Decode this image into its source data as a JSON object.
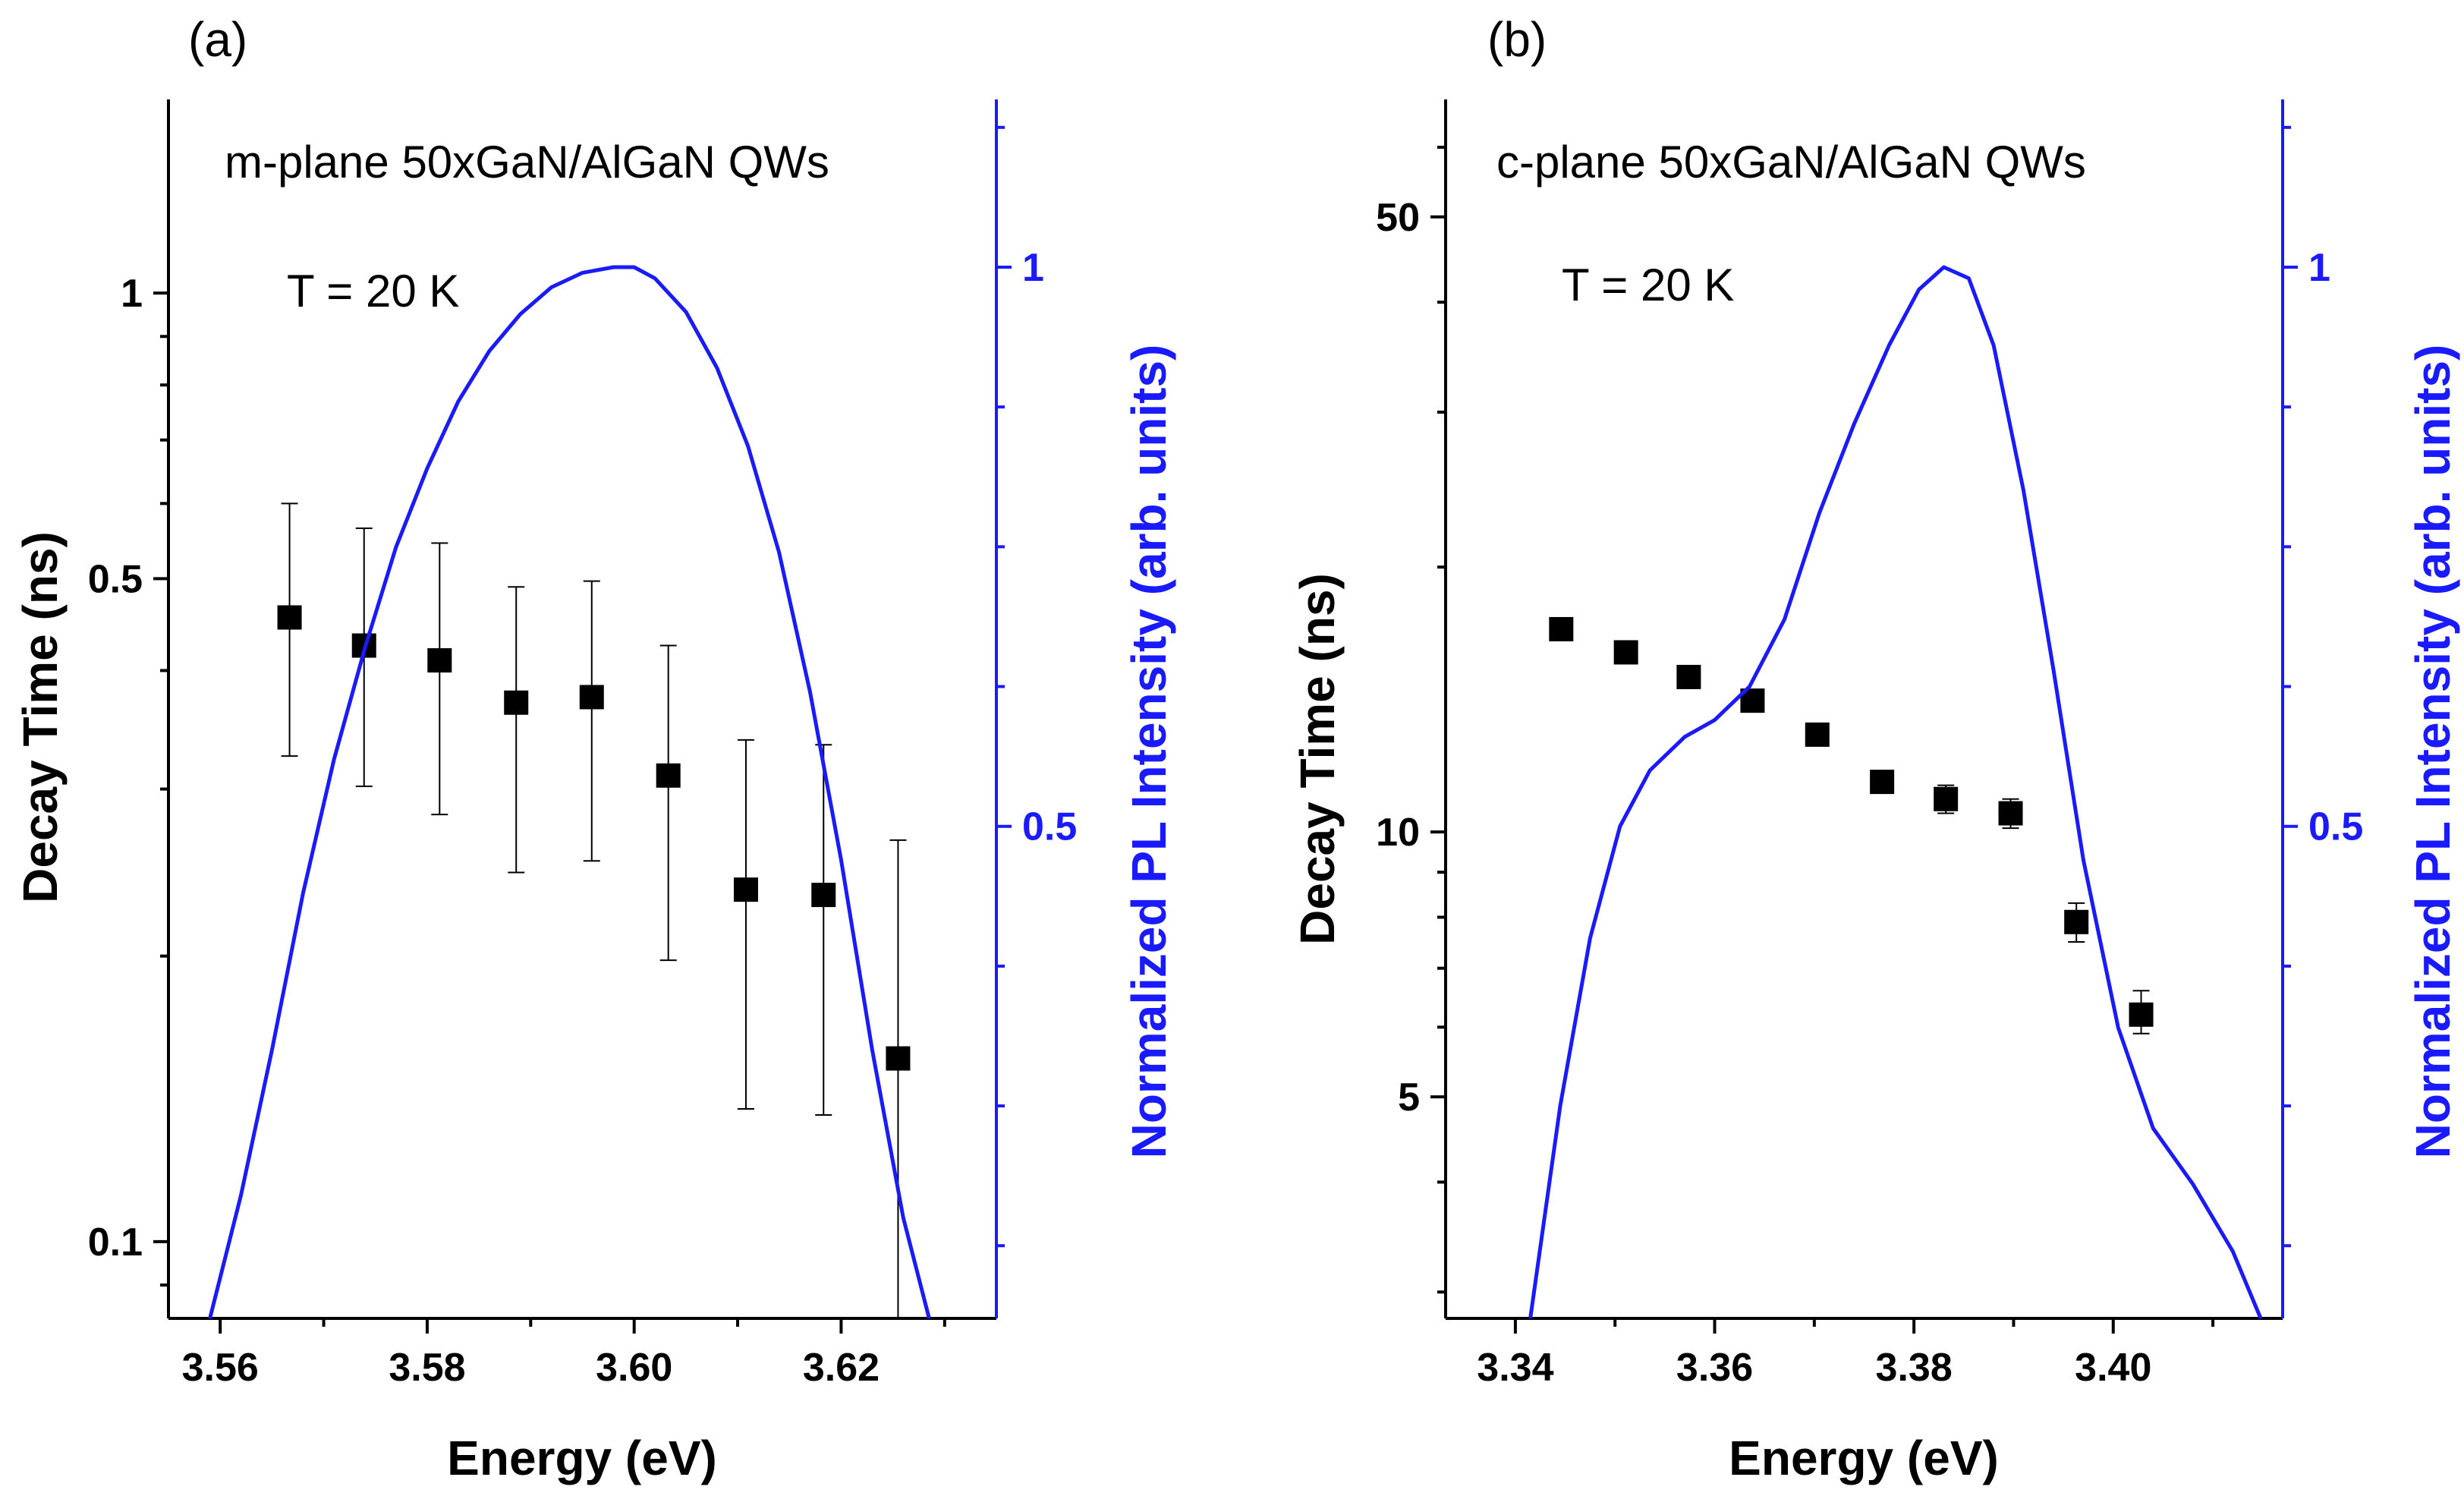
{
  "chart_data": [
    {
      "type": "scatter",
      "panel_label": "(a)",
      "title": "m-plane 50xGaN/AlGaN QWs",
      "annotation": "T = 20 K",
      "xlabel": "Energy (eV)",
      "ylabel": "Decay Time (ns)",
      "y2label": "Normalized PL Intensity (arb. units)",
      "xlim": [
        3.555,
        3.635
      ],
      "ylim": [
        0.083,
        1.6
      ],
      "yscale": "log",
      "y2lim": [
        0.06,
        1.15
      ],
      "grid": false,
      "xticks": [
        3.56,
        3.58,
        3.6,
        3.62
      ],
      "xtick_labels": [
        "3.56",
        "3.58",
        "3.60",
        "3.62"
      ],
      "yticks": [
        0.1,
        0.5,
        1
      ],
      "ytick_labels": [
        "0.1",
        "0.5",
        "1"
      ],
      "y2ticks": [
        0.5,
        1
      ],
      "y2tick_labels": [
        "0.5",
        "1"
      ],
      "series": [
        {
          "name": "Decay Time",
          "axis": "left",
          "kind": "points-errorbars",
          "color": "#000000",
          "x": [
            3.5667,
            3.5739,
            3.5812,
            3.5886,
            3.5959,
            3.6033,
            3.6108,
            3.6183,
            3.6255
          ],
          "y": [
            0.455,
            0.425,
            0.41,
            0.37,
            0.375,
            0.31,
            0.235,
            0.232,
            0.156
          ],
          "err_low": [
            0.325,
            0.302,
            0.282,
            0.245,
            0.252,
            0.198,
            0.138,
            0.136,
            0.083
          ],
          "err_high": [
            0.6,
            0.565,
            0.545,
            0.49,
            0.497,
            0.425,
            0.338,
            0.334,
            0.265
          ]
        },
        {
          "name": "Normalized PL Intensity",
          "axis": "right",
          "kind": "line",
          "color": "#1a1aff",
          "x": [
            3.559,
            3.562,
            3.565,
            3.568,
            3.571,
            3.574,
            3.577,
            3.58,
            3.583,
            3.586,
            3.589,
            3.592,
            3.595,
            3.598,
            3.6,
            3.602,
            3.605,
            3.608,
            3.611,
            3.614,
            3.617,
            3.62,
            3.623,
            3.626,
            3.6285
          ],
          "y": [
            0.06,
            0.17,
            0.3,
            0.44,
            0.56,
            0.66,
            0.75,
            0.82,
            0.88,
            0.925,
            0.958,
            0.982,
            0.995,
            1.0,
            1.0,
            0.99,
            0.96,
            0.91,
            0.84,
            0.745,
            0.62,
            0.47,
            0.3,
            0.15,
            0.06
          ]
        }
      ]
    },
    {
      "type": "scatter",
      "panel_label": "(b)",
      "title": "c-plane 50xGaN/AlGaN QWs",
      "annotation": "T = 20 K",
      "xlabel": "Energy (eV)",
      "ylabel": "Decay Time (ns)",
      "y2label": "Normalized PL Intensity (arb. units)",
      "xlim": [
        3.333,
        3.417
      ],
      "ylim": [
        2.8,
        68
      ],
      "yscale": "log",
      "y2lim": [
        0.06,
        1.15
      ],
      "grid": false,
      "xticks": [
        3.34,
        3.36,
        3.38,
        3.4
      ],
      "xtick_labels": [
        "3.34",
        "3.36",
        "3.38",
        "3.40"
      ],
      "yticks": [
        5,
        10,
        50
      ],
      "ytick_labels": [
        "5",
        "10",
        "50"
      ],
      "y2ticks": [
        0.5,
        1
      ],
      "y2tick_labels": [
        "0.5",
        "1"
      ],
      "series": [
        {
          "name": "Decay Time",
          "axis": "left",
          "kind": "points-errorbars",
          "color": "#000000",
          "x": [
            3.3446,
            3.3511,
            3.3574,
            3.3638,
            3.3703,
            3.3768,
            3.3832,
            3.3897,
            3.3963,
            3.4028
          ],
          "y": [
            17.0,
            16.0,
            15.0,
            14.1,
            12.9,
            11.4,
            10.9,
            10.5,
            7.9,
            6.2
          ],
          "err_low": [
            17.0,
            16.0,
            15.0,
            14.1,
            12.7,
            11.1,
            10.5,
            10.1,
            7.5,
            5.9
          ],
          "err_high": [
            17.0,
            16.0,
            15.0,
            14.1,
            13.1,
            11.7,
            11.3,
            10.9,
            8.3,
            6.6
          ]
        },
        {
          "name": "Normalized PL Intensity",
          "axis": "right",
          "kind": "line",
          "color": "#1a1aff",
          "x": [
            3.3415,
            3.3445,
            3.3475,
            3.3505,
            3.3535,
            3.357,
            3.36,
            3.3635,
            3.367,
            3.3705,
            3.374,
            3.3775,
            3.3805,
            3.383,
            3.3855,
            3.388,
            3.391,
            3.394,
            3.397,
            3.4005,
            3.404,
            3.408,
            3.412,
            3.4148
          ],
          "y": [
            0.06,
            0.25,
            0.4,
            0.5,
            0.55,
            0.58,
            0.595,
            0.625,
            0.685,
            0.78,
            0.86,
            0.93,
            0.98,
            1.0,
            0.99,
            0.93,
            0.8,
            0.64,
            0.47,
            0.32,
            0.23,
            0.18,
            0.12,
            0.06
          ]
        }
      ]
    }
  ]
}
